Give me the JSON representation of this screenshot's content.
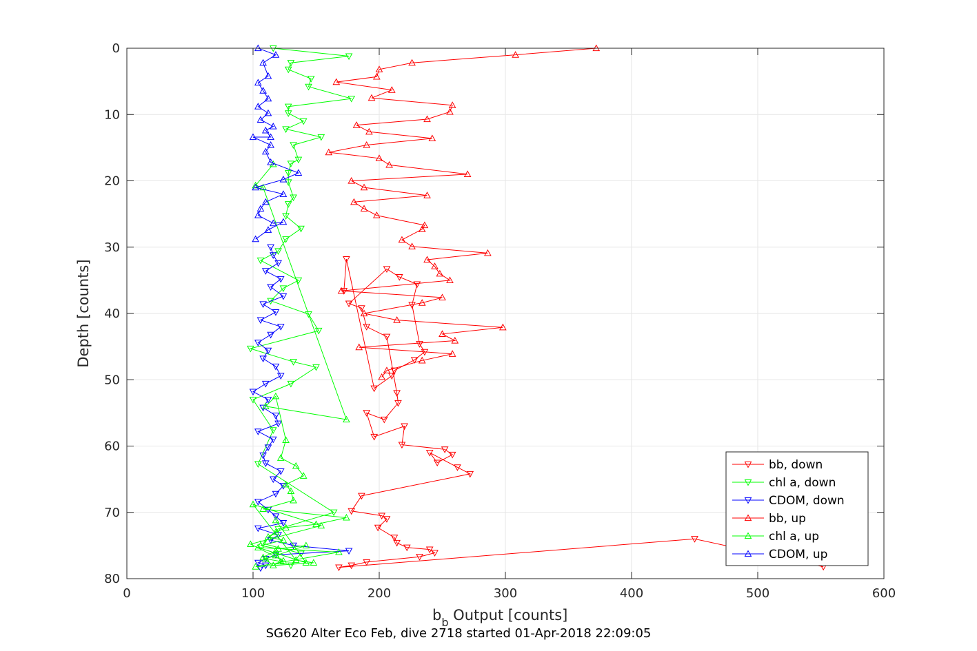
{
  "chart_data": {
    "type": "line",
    "title": "SG620 Alter Eco Feb, dive 2718 started 01-Apr-2018 22:09:05",
    "xlabel_main": "b",
    "xlabel_sub": "b",
    "xlabel_rest": " Output [counts]",
    "ylabel": "Depth [counts]",
    "xlim": [
      0,
      600
    ],
    "ylim": [
      0,
      80
    ],
    "y_reversed": true,
    "xticks": [
      "0",
      "100",
      "200",
      "300",
      "400",
      "500",
      "600"
    ],
    "yticks": [
      "0",
      "10",
      "20",
      "30",
      "40",
      "50",
      "60",
      "70",
      "80"
    ],
    "grid": true,
    "legend_position": "bottom-right",
    "series": [
      {
        "name": "bb, down",
        "color": "#ff0000",
        "marker": "triangle-down",
        "x": [
          172,
          174,
          196,
          210,
          212,
          228,
          236,
          232,
          226,
          230,
          216,
          206,
          176,
          186,
          190,
          206,
          214,
          215,
          204,
          190,
          196,
          220,
          218,
          252,
          258,
          246,
          240,
          262,
          272,
          186,
          178,
          202,
          206,
          199,
          212,
          214,
          222,
          240,
          244,
          232,
          190,
          178,
          168,
          450,
          552
        ],
        "y": [
          36.6,
          31.8,
          51.3,
          49.4,
          48.6,
          47.0,
          45.8,
          44.6,
          38.7,
          35.6,
          34.5,
          33.3,
          38.5,
          39.2,
          42.0,
          43.5,
          52.0,
          53.5,
          56.0,
          55.0,
          58.6,
          57.0,
          59.8,
          60.5,
          61.3,
          62.5,
          61.0,
          63.2,
          64.2,
          67.5,
          69.8,
          70.5,
          71.0,
          72.3,
          73.8,
          74.6,
          75.3,
          75.6,
          76.1,
          76.7,
          77.5,
          78.0,
          78.3,
          74.0,
          78.2
        ]
      },
      {
        "name": "chl a, down",
        "color": "#00ff00",
        "marker": "triangle-down",
        "x": [
          116,
          176,
          130,
          128,
          146,
          144,
          178,
          128,
          128,
          140,
          126,
          154,
          132,
          136,
          130,
          128,
          128,
          132,
          128,
          126,
          138,
          126,
          120,
          106,
          136,
          124,
          114,
          144,
          152,
          98,
          132,
          150,
          130,
          100,
          116,
          104,
          164,
          120,
          108,
          138,
          130
        ],
        "y": [
          0.0,
          1.2,
          2.2,
          3.2,
          4.6,
          5.8,
          7.6,
          8.8,
          9.8,
          11.0,
          12.2,
          13.4,
          14.6,
          16.8,
          17.4,
          18.8,
          20.2,
          22.5,
          23.5,
          25.3,
          27.2,
          28.8,
          30.6,
          32.0,
          35.0,
          36.2,
          38.1,
          40.1,
          42.6,
          45.3,
          47.3,
          48.1,
          50.6,
          53.0,
          57.6,
          62.7,
          70.0,
          72.5,
          74.7,
          76.2,
          78.0
        ]
      },
      {
        "name": "CDOM, down",
        "color": "#0000ff",
        "marker": "triangle-down",
        "x": [
          114,
          116,
          120,
          110,
          122,
          114,
          124,
          108,
          118,
          106,
          122,
          114,
          104,
          112,
          108,
          118,
          122,
          110,
          100,
          112,
          108,
          118,
          120,
          104,
          116,
          112,
          108,
          110,
          122,
          116,
          124,
          118,
          104,
          112,
          118,
          124,
          104,
          120,
          114,
          132,
          176,
          118,
          110,
          104,
          110,
          106
        ],
        "y": [
          30.0,
          31.2,
          32.4,
          33.6,
          34.8,
          36.0,
          37.4,
          38.6,
          39.8,
          41.0,
          42.0,
          43.2,
          44.4,
          45.6,
          46.8,
          48.0,
          49.4,
          50.6,
          51.8,
          53.0,
          54.2,
          55.4,
          56.6,
          57.8,
          59.0,
          60.2,
          61.4,
          62.6,
          63.8,
          65.0,
          66.0,
          67.2,
          68.4,
          69.6,
          70.6,
          71.6,
          72.4,
          73.4,
          74.2,
          75.0,
          75.8,
          76.4,
          77.0,
          77.6,
          78.0,
          78.4
        ]
      },
      {
        "name": "bb, up",
        "color": "#ff0000",
        "marker": "triangle-up",
        "x": [
          372,
          308,
          226,
          200,
          198,
          166,
          210,
          194,
          258,
          256,
          238,
          182,
          192,
          242,
          190,
          160,
          200,
          208,
          270,
          178,
          188,
          238,
          180,
          188,
          198,
          236,
          234,
          218,
          226,
          286,
          238,
          244,
          248,
          256,
          170,
          250,
          234,
          188,
          214,
          298,
          250,
          260,
          184,
          258,
          234,
          206,
          202
        ],
        "y": [
          0.0,
          1.0,
          2.2,
          3.2,
          4.3,
          5.1,
          6.3,
          7.5,
          8.6,
          9.6,
          10.7,
          11.6,
          12.6,
          13.6,
          14.6,
          15.7,
          16.6,
          17.6,
          19.0,
          20.0,
          21.0,
          22.2,
          23.2,
          24.2,
          25.2,
          26.7,
          27.3,
          28.9,
          29.9,
          30.9,
          31.9,
          32.9,
          34.0,
          35.0,
          36.6,
          37.6,
          38.4,
          40.0,
          41.0,
          42.1,
          43.1,
          44.1,
          45.1,
          46.1,
          47.1,
          48.6,
          49.6
        ]
      },
      {
        "name": "chl a, up",
        "color": "#00ff00",
        "marker": "triangle-up",
        "x": [
          116,
          102,
          108,
          174,
          110,
          118,
          126,
          122,
          134,
          140,
          126,
          130,
          132,
          108,
          174,
          150,
          126,
          118,
          112,
          124,
          106,
          120,
          142,
          118,
          110,
          122,
          118,
          108,
          116,
          124,
          98,
          154,
          100,
          134,
          148,
          102,
          168,
          104,
          142,
          118
        ],
        "y": [
          17.5,
          20.7,
          21.0,
          56.0,
          54.0,
          52.5,
          59.1,
          61.8,
          63.0,
          64.5,
          65.8,
          66.8,
          68.2,
          69.5,
          70.8,
          71.8,
          72.3,
          73.0,
          73.7,
          74.2,
          75.0,
          75.5,
          75.0,
          76.5,
          77.0,
          77.4,
          75.8,
          76.8,
          78.0,
          77.3,
          74.8,
          72.0,
          68.8,
          77.2,
          77.6,
          78.2,
          76.0,
          75.3,
          77.6,
          71.2
        ]
      },
      {
        "name": "CDOM, up",
        "color": "#0000ff",
        "marker": "triangle-up",
        "x": [
          104,
          118,
          108,
          112,
          104,
          108,
          112,
          104,
          112,
          106,
          116,
          110,
          114,
          100,
          114,
          110,
          114,
          136,
          124,
          102,
          124,
          110,
          106,
          104,
          116,
          124,
          112,
          102
        ],
        "y": [
          0.0,
          1.0,
          2.2,
          4.2,
          5.2,
          6.4,
          7.6,
          8.8,
          9.8,
          10.8,
          11.8,
          12.4,
          13.4,
          13.4,
          14.6,
          15.6,
          17.2,
          18.8,
          19.8,
          21.0,
          22.0,
          23.2,
          24.2,
          25.2,
          26.4,
          26.2,
          27.4,
          28.8
        ]
      }
    ]
  },
  "legend": {
    "entries": [
      "bb, down",
      "chl a, down",
      "CDOM, down",
      "bb, up",
      "chl a, up",
      "CDOM, up"
    ]
  }
}
